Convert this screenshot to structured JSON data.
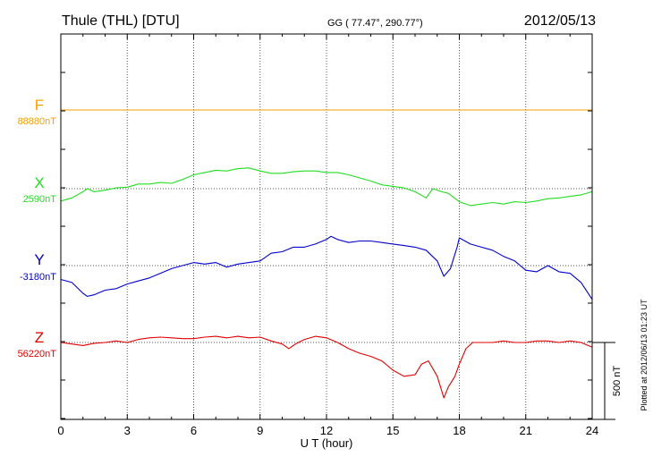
{
  "header": {
    "station": "Thule (THL)  [DTU]",
    "coords": "GG ( 77.47°, 290.77°)",
    "date": "2012/05/13"
  },
  "footer": {
    "plotted": "Plotted at 2012/06/13 01:23 UT"
  },
  "chart_data": {
    "type": "line",
    "xlabel": "U T (hour)",
    "xlim": [
      0,
      24
    ],
    "x_ticks": [
      0,
      3,
      6,
      9,
      12,
      15,
      18,
      21,
      24
    ],
    "grid": true,
    "scale_bar": {
      "label": "500 nT",
      "value": 500
    },
    "series": [
      {
        "name": "F",
        "baseline_label": "88880nT",
        "baseline": 88880,
        "color": "#f5a000",
        "x": [
          0,
          24
        ],
        "y": [
          88880,
          88880
        ]
      },
      {
        "name": "X",
        "baseline_label": "2590nT",
        "baseline": 2590,
        "color": "#22dd22",
        "x": [
          0,
          0.5,
          1,
          1.2,
          1.5,
          2,
          2.5,
          3,
          3.5,
          4,
          4.5,
          5,
          5.5,
          6,
          6.5,
          7,
          7.5,
          8,
          8.5,
          9,
          9.5,
          10,
          10.5,
          11,
          11.5,
          12,
          12.5,
          13,
          13.5,
          14,
          14.5,
          15,
          15.5,
          16,
          16.5,
          16.8,
          17.2,
          17.5,
          18,
          18.5,
          19,
          19.5,
          20,
          20.5,
          21,
          21.5,
          22,
          22.5,
          23,
          23.5,
          24
        ],
        "y": [
          2510,
          2530,
          2570,
          2590,
          2570,
          2580,
          2595,
          2600,
          2620,
          2620,
          2630,
          2625,
          2650,
          2680,
          2695,
          2710,
          2705,
          2720,
          2725,
          2705,
          2690,
          2690,
          2700,
          2705,
          2705,
          2695,
          2695,
          2680,
          2660,
          2640,
          2615,
          2605,
          2595,
          2570,
          2530,
          2590,
          2570,
          2560,
          2505,
          2480,
          2490,
          2500,
          2490,
          2505,
          2500,
          2510,
          2525,
          2530,
          2540,
          2550,
          2570
        ]
      },
      {
        "name": "Y",
        "baseline_label": "-3180nT",
        "baseline": -3180,
        "color": "#0000cc",
        "x": [
          0,
          0.5,
          1,
          1.2,
          1.5,
          2,
          2.5,
          3,
          3.5,
          4,
          4.5,
          5,
          5.5,
          6,
          6.5,
          7,
          7.5,
          8,
          8.5,
          9,
          9.5,
          10,
          10.5,
          11,
          11.5,
          12,
          12.2,
          12.5,
          13,
          13.5,
          14,
          14.5,
          15,
          15.5,
          16,
          16.5,
          17,
          17.3,
          17.6,
          17.9,
          18,
          18.5,
          19,
          19.5,
          20,
          20.5,
          21,
          21.5,
          22,
          22.5,
          23,
          23.5,
          24
        ],
        "y": [
          -3270,
          -3290,
          -3360,
          -3380,
          -3370,
          -3340,
          -3330,
          -3300,
          -3280,
          -3260,
          -3230,
          -3200,
          -3180,
          -3160,
          -3170,
          -3160,
          -3190,
          -3170,
          -3160,
          -3150,
          -3100,
          -3090,
          -3060,
          -3060,
          -3040,
          -3010,
          -2990,
          -3010,
          -3030,
          -3020,
          -3020,
          -3030,
          -3040,
          -3050,
          -3060,
          -3080,
          -3150,
          -3250,
          -3200,
          -3060,
          -3000,
          -3040,
          -3060,
          -3080,
          -3120,
          -3150,
          -3210,
          -3220,
          -3180,
          -3220,
          -3230,
          -3290,
          -3400
        ]
      },
      {
        "name": "Z",
        "baseline_label": "56220nT",
        "baseline": 56220,
        "color": "#e00000",
        "x": [
          0,
          0.5,
          1,
          1.5,
          2,
          2.5,
          3,
          3.5,
          4,
          4.5,
          5,
          5.5,
          6,
          6.5,
          7,
          7.5,
          8,
          8.5,
          9,
          9.5,
          10,
          10.3,
          10.6,
          11,
          11.5,
          12,
          12.5,
          13,
          13.5,
          14,
          14.5,
          15,
          15.5,
          16,
          16.3,
          16.6,
          17,
          17.3,
          17.5,
          17.8,
          18,
          18.3,
          18.6,
          19,
          19.5,
          20,
          20.5,
          21,
          21.5,
          22,
          22.5,
          23,
          23.5,
          24
        ],
        "y": [
          56220,
          56210,
          56200,
          56215,
          56220,
          56230,
          56220,
          56240,
          56250,
          56255,
          56250,
          56245,
          56245,
          56255,
          56260,
          56250,
          56260,
          56250,
          56255,
          56230,
          56210,
          56180,
          56210,
          56240,
          56260,
          56250,
          56220,
          56180,
          56150,
          56130,
          56100,
          56040,
          56000,
          56010,
          56080,
          56100,
          56000,
          55860,
          55930,
          56000,
          56080,
          56180,
          56220,
          56220,
          56220,
          56230,
          56220,
          56220,
          56230,
          56230,
          56220,
          56230,
          56220,
          56190
        ]
      }
    ]
  }
}
